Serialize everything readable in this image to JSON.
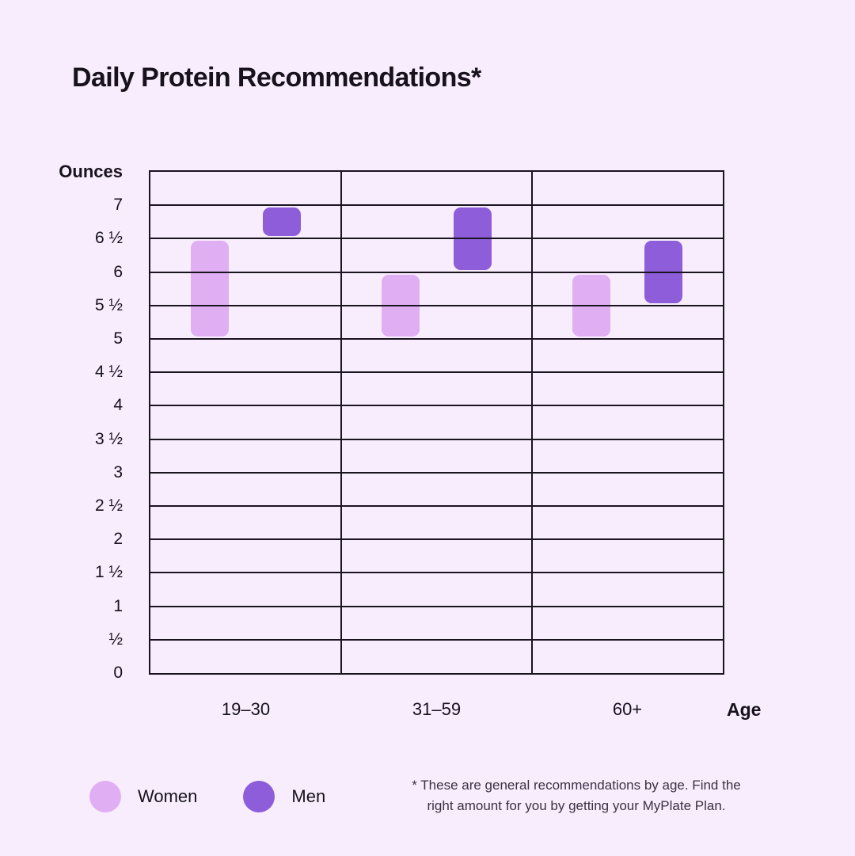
{
  "page": {
    "title": "Daily Protein Recommendations*"
  },
  "colors": {
    "background": "#F8EDFC",
    "women": "#E0AFF3",
    "men": "#8D5DDA",
    "grid_line": "#1A141F",
    "text": "#17121C",
    "footnote_text": "#3A3145"
  },
  "chart_data": {
    "type": "bar",
    "subtype": "floating-range-columns",
    "title": "Daily Protein Recommendations*",
    "ylabel": "Ounces",
    "xlabel": "Age",
    "ylim": [
      0,
      7.5
    ],
    "ytick_step": 0.5,
    "ytick_labels_top_to_bottom": [
      "7",
      "6 ½",
      "6",
      "5 ½",
      "5",
      "4 ½",
      "4",
      "3 ½",
      "3",
      "2 ½",
      "2",
      "1 ½",
      "1",
      "½",
      "0"
    ],
    "grid": true,
    "column_separators": true,
    "categories": [
      "19–30",
      "31–59",
      "60+"
    ],
    "series": [
      {
        "name": "Women",
        "color": "#E0AFF3",
        "ranges_oz": [
          {
            "category": "19–30",
            "low": 5,
            "high": 6.5
          },
          {
            "category": "31–59",
            "low": 5,
            "high": 6
          },
          {
            "category": "60+",
            "low": 5,
            "high": 6
          }
        ]
      },
      {
        "name": "Men",
        "color": "#8D5DDA",
        "ranges_oz": [
          {
            "category": "19–30",
            "low": 6.5,
            "high": 7
          },
          {
            "category": "31–59",
            "low": 6,
            "high": 7
          },
          {
            "category": "60+",
            "low": 5.5,
            "high": 6.5
          }
        ]
      }
    ],
    "legend_position": "bottom-left"
  },
  "legend": {
    "items": [
      {
        "label": "Women"
      },
      {
        "label": "Men"
      }
    ]
  },
  "footnote": {
    "lines": [
      "* These are general recommendations by age. Find the",
      "right amount for you by getting your MyPlate Plan."
    ]
  }
}
